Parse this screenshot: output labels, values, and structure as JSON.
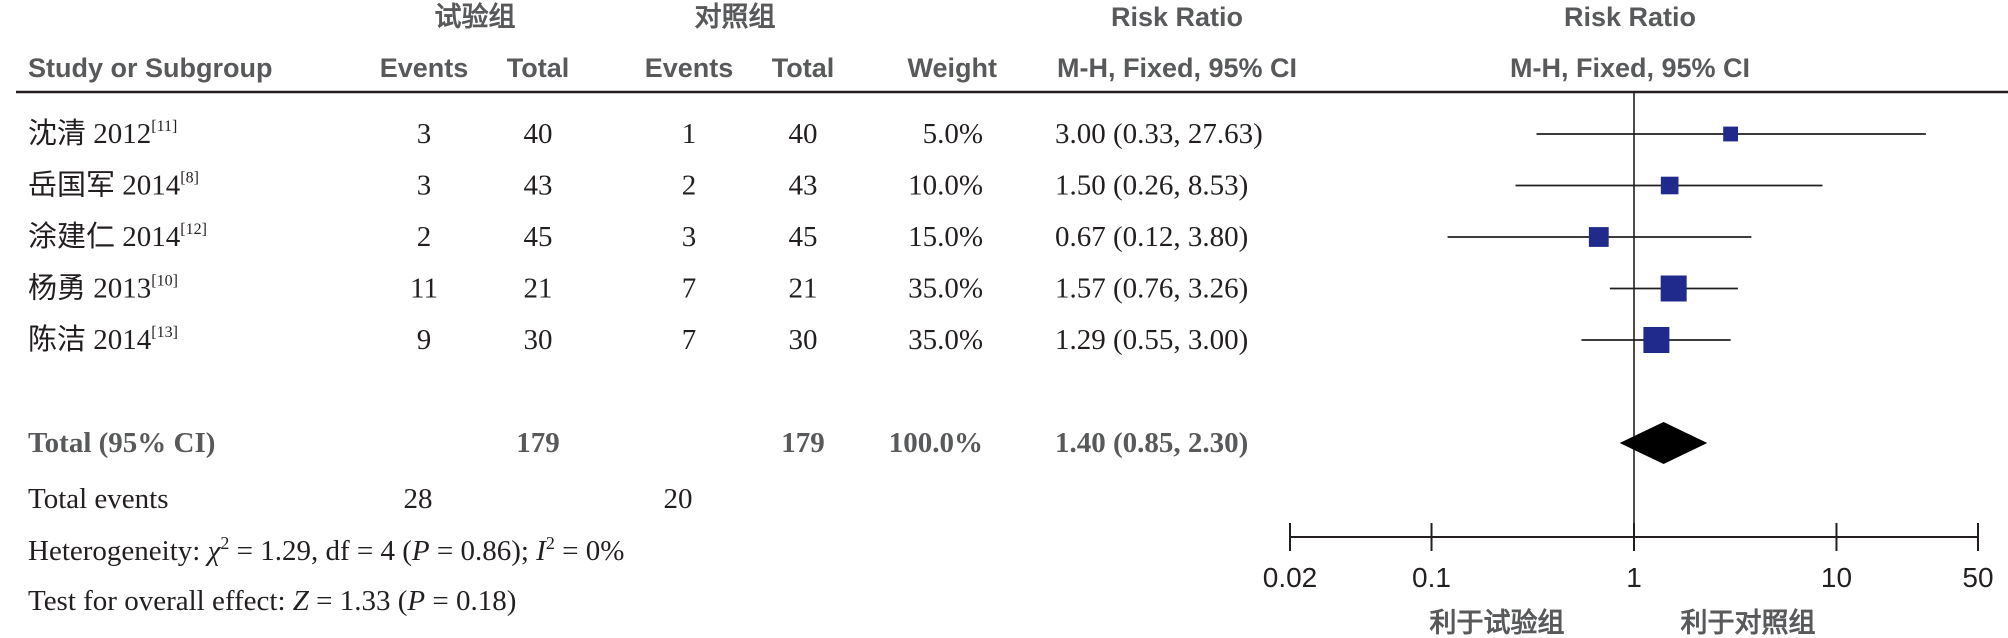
{
  "header": {
    "exp_group": "试验组",
    "ctl_group": "对照组",
    "rr_title": "Risk Ratio",
    "plot_title": "Risk Ratio",
    "col_study": "Study or Subgroup",
    "col_exp_events": "Events",
    "col_exp_total": "Total",
    "col_ctl_events": "Events",
    "col_ctl_total": "Total",
    "col_weight": "Weight",
    "col_method": "M-H, Fixed, 95% CI",
    "plot_method": "M-H, Fixed, 95% CI"
  },
  "studies": [
    {
      "name": "沈清 2012",
      "ref": "[11]",
      "exp_events": "3",
      "exp_total": "40",
      "ctl_events": "1",
      "ctl_total": "40",
      "weight": "5.0%",
      "ci_text": "3.00 (0.33, 27.63)"
    },
    {
      "name": "岳国军 2014",
      "ref": "[8]",
      "exp_events": "3",
      "exp_total": "43",
      "ctl_events": "2",
      "ctl_total": "43",
      "weight": "10.0%",
      "ci_text": "1.50 (0.26, 8.53)"
    },
    {
      "name": "涂建仁 2014",
      "ref": "[12]",
      "exp_events": "2",
      "exp_total": "45",
      "ctl_events": "3",
      "ctl_total": "45",
      "weight": "15.0%",
      "ci_text": "0.67 (0.12, 3.80)"
    },
    {
      "name": "杨勇 2013",
      "ref": "[10]",
      "exp_events": "11",
      "exp_total": "21",
      "ctl_events": "7",
      "ctl_total": "21",
      "weight": "35.0%",
      "ci_text": "1.57 (0.76, 3.26)"
    },
    {
      "name": "陈洁 2014",
      "ref": "[13]",
      "exp_events": "9",
      "exp_total": "30",
      "ctl_events": "7",
      "ctl_total": "30",
      "weight": "35.0%",
      "ci_text": "1.29 (0.55, 3.00)"
    }
  ],
  "total": {
    "label": "Total (95% CI)",
    "exp_total": "179",
    "ctl_total": "179",
    "weight": "100.0%",
    "ci_text": "1.40 (0.85, 2.30)"
  },
  "events": {
    "label": "Total events",
    "exp": "28",
    "ctl": "20"
  },
  "heterogeneity": {
    "prefix": "Heterogeneity: ",
    "chi": "χ",
    "chi_sup": "2",
    "chi_val": " = 1.29, df = 4 (",
    "p": "P",
    "p_val": " = 0.86); ",
    "i": "I",
    "i_sup": "2",
    "i_val": " = 0%"
  },
  "overall": {
    "prefix": "Test for overall effect: ",
    "z": "Z",
    "z_val": " = 1.33 (",
    "p": "P",
    "p_val": " = 0.18)"
  },
  "axis": {
    "ticks": [
      "0.02",
      "0.1",
      "1",
      "10",
      "50"
    ],
    "favours_left": "利于试验组",
    "favours_right": "利于对照组"
  },
  "colors": {
    "study_marker": "#1f2a8c",
    "summary_diamond": "#000000",
    "line": "#231f20"
  },
  "chart_data": {
    "type": "forest",
    "title": "Risk Ratio",
    "method": "M-H, Fixed, 95% CI",
    "scale": "log",
    "xlim": [
      0.02,
      50
    ],
    "xticks": [
      0.02,
      0.1,
      1,
      10,
      50
    ],
    "null_line": 1,
    "studies": [
      {
        "name": "沈清 2012",
        "rr": 3.0,
        "lower": 0.33,
        "upper": 27.63,
        "weight": 5.0
      },
      {
        "name": "岳国军 2014",
        "rr": 1.5,
        "lower": 0.26,
        "upper": 8.53,
        "weight": 10.0
      },
      {
        "name": "涂建仁 2014",
        "rr": 0.67,
        "lower": 0.12,
        "upper": 3.8,
        "weight": 15.0
      },
      {
        "name": "杨勇 2013",
        "rr": 1.57,
        "lower": 0.76,
        "upper": 3.26,
        "weight": 35.0
      },
      {
        "name": "陈洁 2014",
        "rr": 1.29,
        "lower": 0.55,
        "upper": 3.0,
        "weight": 35.0
      }
    ],
    "summary": {
      "rr": 1.4,
      "lower": 0.85,
      "upper": 2.3,
      "weight": 100.0
    }
  }
}
